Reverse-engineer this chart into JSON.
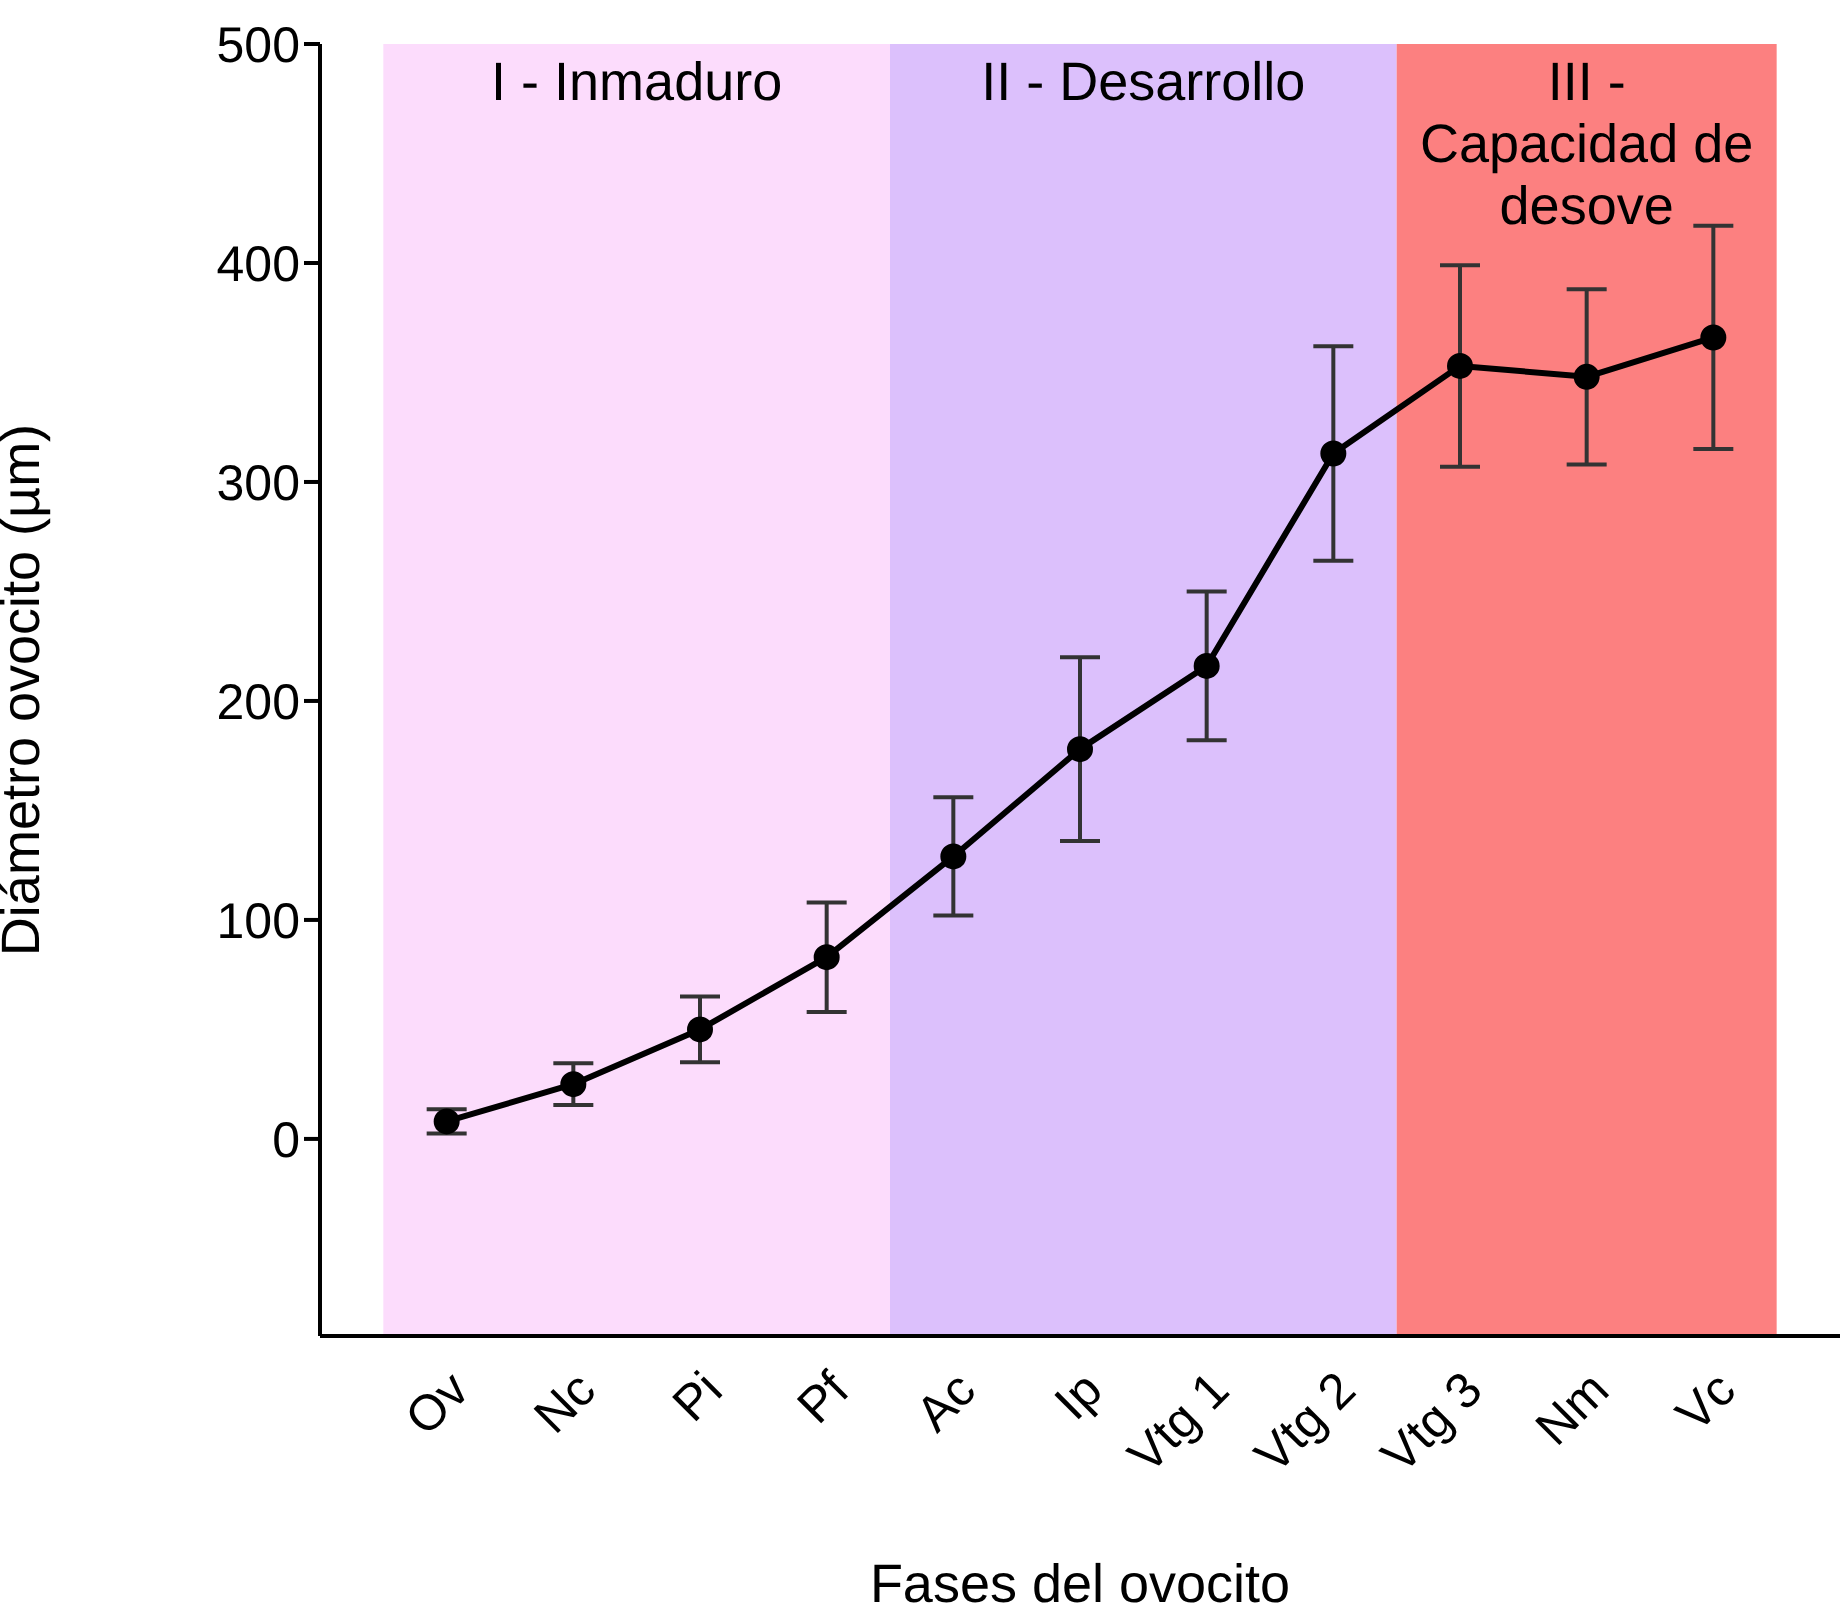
{
  "chart_data": {
    "type": "line",
    "xlabel": "Fases del ovocito",
    "ylabel": "Diámetro ovocito (µm)",
    "categories": [
      "Ov",
      "Nc",
      "Pi",
      "Pf",
      "Ac",
      "Ip",
      "Vtg 1",
      "Vtg 2",
      "Vtg 3",
      "Nm",
      "Vc"
    ],
    "series": [
      {
        "color": "#000000",
        "values": [
          8,
          25,
          50,
          83,
          129,
          178,
          216,
          313,
          353,
          348,
          366
        ],
        "errors": [
          5.5,
          9.5,
          15,
          25,
          27,
          42,
          34,
          49,
          46,
          40,
          51
        ]
      }
    ],
    "ylim": [
      -90,
      500
    ],
    "yticks": [
      0,
      100,
      200,
      300,
      400,
      500
    ],
    "grid": false,
    "legend": false,
    "marker": "circle",
    "line_style": "solid",
    "bands": [
      {
        "axis": "x",
        "from": "Ov",
        "to": "Pf",
        "label": "I - Inmaduro",
        "color": "#fcdcfc"
      },
      {
        "axis": "x",
        "from": "Ac",
        "to": "Vtg 2",
        "label": "II - Desarrollo",
        "color": "#dcc0fc"
      },
      {
        "axis": "x",
        "from": "Vtg 3",
        "to": "Vc",
        "label": "III - Capacidad de desove",
        "color": "#fc8080"
      }
    ]
  }
}
